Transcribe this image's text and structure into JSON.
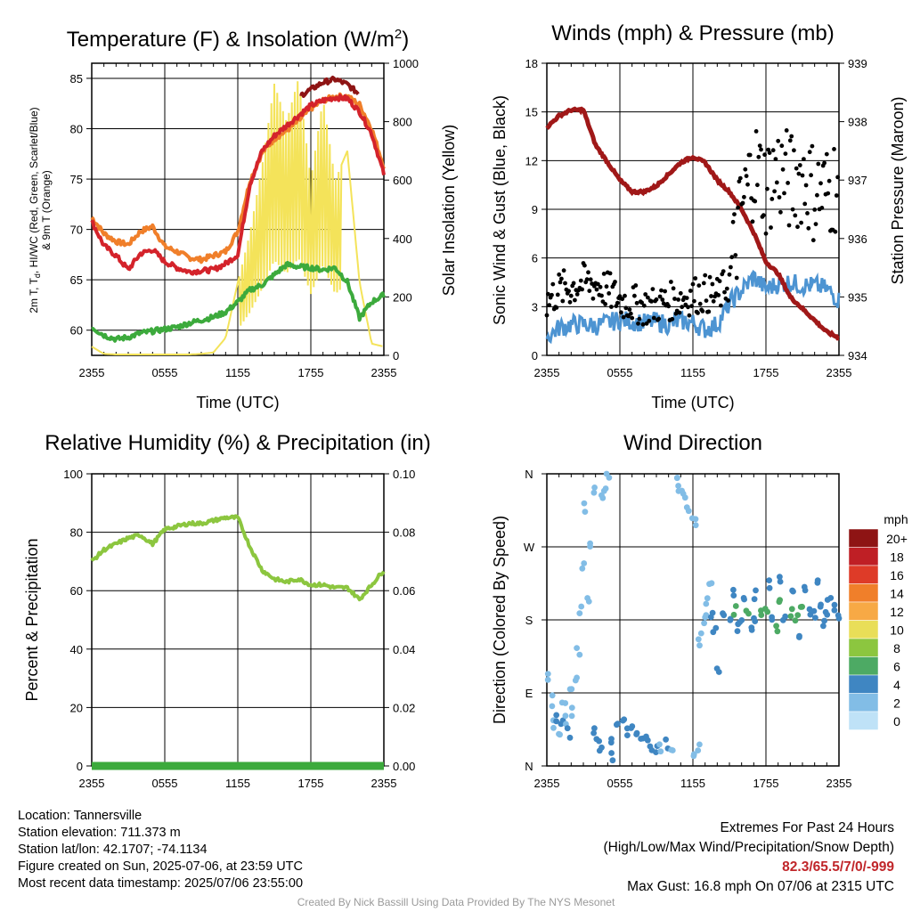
{
  "colors": {
    "temp": "#d4232b",
    "dew": "#3caa3c",
    "wchi": "#f07f2a",
    "t9m": "#f07f2a",
    "heat": "#8e1414",
    "solar": "#f4e35a",
    "wind": "#4d94d2",
    "gust": "#000000",
    "pressure": "#a01818",
    "rh": "#8cc63f",
    "precip": "#3caa3c"
  },
  "chart_data": [
    {
      "type": "line",
      "title": "Temperature (F) & Insolation (W/m²)",
      "title_main": "Temperature (F) & Insolation (W/m",
      "title_sup": "2",
      "title_end": ")",
      "xlabel": "Time (UTC)",
      "ylabel_left_1": "2m T, T",
      "ylabel_left_sub": "d",
      "ylabel_left_2": ", HI/WC (Red, Green, Scarlet/Blue)",
      "ylabel_left_3": "& 9m T (Orange)",
      "ylabel_right": "Solar Insolation (Yellow)",
      "x_ticks": [
        "2355",
        "0555",
        "1155",
        "1755",
        "2355"
      ],
      "x_range": [
        0,
        24
      ],
      "ylim": [
        57.5,
        86.5
      ],
      "y_ticks": [
        60,
        65,
        70,
        75,
        80,
        85
      ],
      "y2lim": [
        0,
        1000
      ],
      "y2_ticks": [
        0,
        200,
        400,
        600,
        800,
        1000
      ],
      "x": [
        0,
        1,
        2,
        3,
        4,
        5,
        6,
        7,
        8,
        9,
        10,
        11,
        12,
        13,
        14,
        15,
        16,
        17,
        18,
        19,
        20,
        21,
        22,
        23,
        24
      ],
      "series": [
        {
          "key": "t9m",
          "axis": "left",
          "values": [
            71.2,
            69.6,
            68.8,
            68.5,
            69.8,
            70.3,
            68.3,
            67.8,
            67.2,
            67.0,
            67.4,
            67.8,
            69.8,
            74.8,
            77.6,
            79.0,
            79.8,
            80.8,
            82.0,
            82.8,
            83.2,
            83.2,
            82.4,
            80.0,
            76.2
          ]
        },
        {
          "key": "temp",
          "axis": "left",
          "values": [
            70.8,
            68.4,
            67.4,
            66.0,
            67.6,
            68.0,
            66.8,
            66.2,
            65.8,
            65.9,
            66.0,
            66.6,
            67.5,
            74.5,
            77.8,
            79.3,
            80.3,
            81.3,
            82.3,
            82.8,
            83.1,
            83.0,
            81.7,
            79.5,
            75.5
          ]
        },
        {
          "key": "heat",
          "axis": "left",
          "values": [
            null,
            null,
            null,
            null,
            null,
            null,
            null,
            null,
            null,
            null,
            null,
            null,
            null,
            null,
            null,
            null,
            null,
            83.2,
            83.9,
            84.6,
            84.9,
            84.4,
            83.4,
            null,
            null
          ]
        },
        {
          "key": "dew",
          "axis": "left",
          "values": [
            60.3,
            59.5,
            59.1,
            59.3,
            59.7,
            59.9,
            60.1,
            60.3,
            60.7,
            61.0,
            61.3,
            61.8,
            62.8,
            64.0,
            64.5,
            65.5,
            66.5,
            66.3,
            66.2,
            66.0,
            66.2,
            64.8,
            61.2,
            62.8,
            63.5
          ]
        },
        {
          "key": "solar",
          "axis": "right",
          "values": [
            30,
            5,
            3,
            3,
            3,
            3,
            3,
            3,
            3,
            5,
            10,
            60,
            250,
            420,
            650,
            930,
            800,
            950,
            600,
            880,
            600,
            700,
            250,
            40,
            30
          ]
        }
      ]
    },
    {
      "type": "line",
      "title": "Winds (mph) & Pressure (mb)",
      "xlabel": "Time (UTC)",
      "ylabel": "Sonic Wind & Gust (Blue, Black)",
      "ylabel_right": "Station Pressure (Maroon)",
      "x_ticks": [
        "2355",
        "0555",
        "1155",
        "1755",
        "2355"
      ],
      "x_range": [
        0,
        24
      ],
      "ylim": [
        0,
        18
      ],
      "y_ticks": [
        0,
        3,
        6,
        9,
        12,
        15,
        18
      ],
      "y2lim": [
        934,
        939
      ],
      "y2_ticks": [
        934,
        935,
        936,
        937,
        938,
        939
      ],
      "x": [
        0,
        1,
        2,
        3,
        4,
        5,
        6,
        7,
        8,
        9,
        10,
        11,
        12,
        13,
        14,
        15,
        16,
        17,
        18,
        19,
        20,
        21,
        22,
        23,
        24
      ],
      "series": [
        {
          "key": "wind",
          "axis": "left",
          "values": [
            1.1,
            1.7,
            1.9,
            1.9,
            1.8,
            2.0,
            2.2,
            2.1,
            2.0,
            2.1,
            1.9,
            2.1,
            2.0,
            1.6,
            1.9,
            3.2,
            4.0,
            4.8,
            4.1,
            4.4,
            4.5,
            4.3,
            4.3,
            4.1,
            3.4
          ]
        },
        {
          "key": "gust",
          "axis": "left",
          "values": [
            3.3,
            4.0,
            4.2,
            4.5,
            4.4,
            4.0,
            3.4,
            3.2,
            3.0,
            3.1,
            3.3,
            3.5,
            3.7,
            3.8,
            3.6,
            4.5,
            9.0,
            11.7,
            10.4,
            11.4,
            10.6,
            11.1,
            10.0,
            10.0,
            10.9
          ]
        },
        {
          "key": "pressure",
          "axis": "right",
          "values": [
            937.9,
            938.1,
            938.2,
            938.2,
            937.6,
            937.3,
            937.0,
            936.8,
            936.8,
            936.9,
            937.1,
            937.3,
            937.4,
            937.3,
            937.0,
            936.8,
            936.5,
            936.1,
            935.6,
            935.4,
            935.0,
            934.8,
            934.6,
            934.4,
            934.3
          ]
        }
      ]
    },
    {
      "type": "line",
      "title": "Relative Humidity (%) & Precipitation (in)",
      "ylabel": "Percent & Precipitation",
      "x_ticks": [
        "2355",
        "0555",
        "1155",
        "1755",
        "2355"
      ],
      "x_range": [
        0,
        24
      ],
      "ylim": [
        0,
        100
      ],
      "y_ticks": [
        0,
        20,
        40,
        60,
        80,
        100
      ],
      "y2lim": [
        0,
        0.1
      ],
      "y2_ticks": [
        "0.00",
        "0.02",
        "0.04",
        "0.06",
        "0.08",
        "0.10"
      ],
      "x": [
        0,
        1,
        2,
        3,
        4,
        5,
        6,
        7,
        8,
        9,
        10,
        11,
        12,
        13,
        14,
        15,
        16,
        17,
        18,
        19,
        20,
        21,
        22,
        23,
        24
      ],
      "series": [
        {
          "key": "rh",
          "axis": "left",
          "values": [
            70,
            74,
            76,
            78,
            79,
            76,
            81,
            82,
            83,
            83,
            84,
            85,
            85,
            75,
            67,
            64,
            63,
            64,
            62,
            62,
            61,
            61,
            57,
            62,
            67
          ]
        },
        {
          "key": "precip",
          "axis": "right",
          "values": [
            0,
            0,
            0,
            0,
            0,
            0,
            0,
            0,
            0,
            0,
            0,
            0,
            0,
            0,
            0,
            0,
            0,
            0,
            0,
            0,
            0,
            0,
            0,
            0,
            0
          ]
        }
      ]
    },
    {
      "type": "scatter",
      "title": "Wind Direction",
      "ylabel": "Direction (Colored By Speed)",
      "x_ticks": [
        "2355",
        "0555",
        "1155",
        "1755",
        "2355"
      ],
      "x_range": [
        0,
        24
      ],
      "y_tick_labels": [
        "N",
        "E",
        "S",
        "W",
        "N"
      ],
      "ylim": [
        0,
        360
      ],
      "legend_title": "mph",
      "legend_labels": [
        "20+",
        "18",
        "16",
        "14",
        "12",
        "10",
        "8",
        "6",
        "4",
        "2",
        "0"
      ],
      "legend_colors": [
        "#8e1414",
        "#bf1f25",
        "#de3b28",
        "#f07f2a",
        "#f7a945",
        "#e9de58",
        "#8cc63f",
        "#4daa64",
        "#3f86c2",
        "#82bde6",
        "#bfe2f7"
      ],
      "points": [
        {
          "x": 0.2,
          "dir": 110,
          "spd": 2
        },
        {
          "x": 0.4,
          "dir": 80,
          "spd": 2
        },
        {
          "x": 0.6,
          "dir": 50,
          "spd": 2
        },
        {
          "x": 0.8,
          "dir": 62,
          "spd": 3
        },
        {
          "x": 1.0,
          "dir": 44,
          "spd": 2
        },
        {
          "x": 1.2,
          "dir": 58,
          "spd": 3
        },
        {
          "x": 1.4,
          "dir": 75,
          "spd": 2
        },
        {
          "x": 1.6,
          "dir": 55,
          "spd": 2
        },
        {
          "x": 1.8,
          "dir": 40,
          "spd": 3
        },
        {
          "x": 2.0,
          "dir": 96,
          "spd": 2
        },
        {
          "x": 2.2,
          "dir": 65,
          "spd": 2
        },
        {
          "x": 2.4,
          "dir": 110,
          "spd": 2
        },
        {
          "x": 2.6,
          "dir": 140,
          "spd": 2
        },
        {
          "x": 2.8,
          "dir": 195,
          "spd": 2
        },
        {
          "x": 3.0,
          "dir": 245,
          "spd": 2
        },
        {
          "x": 3.2,
          "dir": 320,
          "spd": 2
        },
        {
          "x": 3.4,
          "dir": 200,
          "spd": 2
        },
        {
          "x": 3.6,
          "dir": 270,
          "spd": 2
        },
        {
          "x": 3.8,
          "dir": 340,
          "spd": 2
        },
        {
          "x": 4.0,
          "dir": 45,
          "spd": 3
        },
        {
          "x": 4.2,
          "dir": 30,
          "spd": 3
        },
        {
          "x": 4.4,
          "dir": 20,
          "spd": 3
        },
        {
          "x": 4.6,
          "dir": 330,
          "spd": 2
        },
        {
          "x": 4.8,
          "dir": 345,
          "spd": 2
        },
        {
          "x": 5.0,
          "dir": 355,
          "spd": 2
        },
        {
          "x": 5.2,
          "dir": 35,
          "spd": 3
        },
        {
          "x": 5.4,
          "dir": 12,
          "spd": 3
        },
        {
          "x": 5.8,
          "dir": 48,
          "spd": 3
        },
        {
          "x": 6.2,
          "dir": 52,
          "spd": 3
        },
        {
          "x": 6.6,
          "dir": 40,
          "spd": 3
        },
        {
          "x": 7.0,
          "dir": 45,
          "spd": 3
        },
        {
          "x": 7.4,
          "dir": 38,
          "spd": 3
        },
        {
          "x": 7.8,
          "dir": 35,
          "spd": 3
        },
        {
          "x": 8.2,
          "dir": 30,
          "spd": 3
        },
        {
          "x": 8.6,
          "dir": 25,
          "spd": 3
        },
        {
          "x": 9.0,
          "dir": 22,
          "spd": 3
        },
        {
          "x": 9.4,
          "dir": 20,
          "spd": 2
        },
        {
          "x": 9.8,
          "dir": 28,
          "spd": 3
        },
        {
          "x": 10.2,
          "dir": 15,
          "spd": 2
        },
        {
          "x": 10.6,
          "dir": 355,
          "spd": 2
        },
        {
          "x": 10.9,
          "dir": 345,
          "spd": 2
        },
        {
          "x": 11.2,
          "dir": 340,
          "spd": 2
        },
        {
          "x": 11.5,
          "dir": 325,
          "spd": 2
        },
        {
          "x": 11.8,
          "dir": 310,
          "spd": 2
        },
        {
          "x": 12.1,
          "dir": 300,
          "spd": 2
        },
        {
          "x": 12.2,
          "dir": 10,
          "spd": 2
        },
        {
          "x": 12.4,
          "dir": 20,
          "spd": 2
        },
        {
          "x": 12.6,
          "dir": 150,
          "spd": 2
        },
        {
          "x": 12.8,
          "dir": 170,
          "spd": 2
        },
        {
          "x": 13.0,
          "dir": 190,
          "spd": 2
        },
        {
          "x": 13.2,
          "dir": 205,
          "spd": 2
        },
        {
          "x": 13.4,
          "dir": 220,
          "spd": 2
        },
        {
          "x": 13.6,
          "dir": 188,
          "spd": 3
        },
        {
          "x": 13.8,
          "dir": 170,
          "spd": 3
        },
        {
          "x": 14.0,
          "dir": 118,
          "spd": 3
        },
        {
          "x": 14.5,
          "dir": 185,
          "spd": 4
        },
        {
          "x": 15.0,
          "dir": 178,
          "spd": 4
        },
        {
          "x": 15.5,
          "dir": 190,
          "spd": 5
        },
        {
          "x": 16.0,
          "dir": 184,
          "spd": 4
        },
        {
          "x": 16.5,
          "dir": 188,
          "spd": 6
        },
        {
          "x": 17.0,
          "dir": 182,
          "spd": 4
        },
        {
          "x": 17.5,
          "dir": 190,
          "spd": 5
        },
        {
          "x": 18.0,
          "dir": 195,
          "spd": 5
        },
        {
          "x": 18.5,
          "dir": 183,
          "spd": 4
        },
        {
          "x": 19.0,
          "dir": 200,
          "spd": 6
        },
        {
          "x": 19.5,
          "dir": 184,
          "spd": 4
        },
        {
          "x": 20.0,
          "dir": 190,
          "spd": 5
        },
        {
          "x": 20.5,
          "dir": 186,
          "spd": 5
        },
        {
          "x": 21.0,
          "dir": 196,
          "spd": 6
        },
        {
          "x": 21.5,
          "dir": 189,
          "spd": 4
        },
        {
          "x": 22.0,
          "dir": 185,
          "spd": 4
        },
        {
          "x": 22.5,
          "dir": 192,
          "spd": 4
        },
        {
          "x": 23.0,
          "dir": 188,
          "spd": 4
        },
        {
          "x": 23.5,
          "dir": 195,
          "spd": 4
        },
        {
          "x": 24.0,
          "dir": 188,
          "spd": 4
        },
        {
          "x": 15.2,
          "dir": 215,
          "spd": 4
        },
        {
          "x": 16.2,
          "dir": 205,
          "spd": 4
        },
        {
          "x": 17.2,
          "dir": 210,
          "spd": 4
        },
        {
          "x": 18.2,
          "dir": 225,
          "spd": 4
        },
        {
          "x": 19.2,
          "dir": 230,
          "spd": 4
        },
        {
          "x": 20.2,
          "dir": 220,
          "spd": 4
        },
        {
          "x": 21.2,
          "dir": 215,
          "spd": 4
        },
        {
          "x": 22.2,
          "dir": 228,
          "spd": 4
        },
        {
          "x": 23.2,
          "dir": 210,
          "spd": 4
        },
        {
          "x": 15.6,
          "dir": 170,
          "spd": 4
        },
        {
          "x": 16.8,
          "dir": 168,
          "spd": 4
        },
        {
          "x": 18.8,
          "dir": 172,
          "spd": 5
        },
        {
          "x": 20.8,
          "dir": 160,
          "spd": 4
        },
        {
          "x": 22.8,
          "dir": 175,
          "spd": 4
        }
      ]
    }
  ],
  "footer": {
    "location": "Location: Tannersville",
    "elevation": "Station elevation: 711.373 m",
    "latlon": "Station lat/lon: 42.1707; -74.1134",
    "created": "Figure created on Sun, 2025-07-06, at 23:59 UTC",
    "recent": "Most recent data timestamp: 2025/07/06 23:55:00",
    "extremes_title": "Extremes For Past 24 Hours",
    "extremes_sub": "(High/Low/Max Wind/Precipitation/Snow Depth)",
    "extremes_values": "82.3/65.5/7/0/-999",
    "max_gust": "Max Gust: 16.8 mph On 07/06 at 2315 UTC",
    "credit": "Created By Nick Bassill Using Data Provided By The NYS Mesonet"
  }
}
